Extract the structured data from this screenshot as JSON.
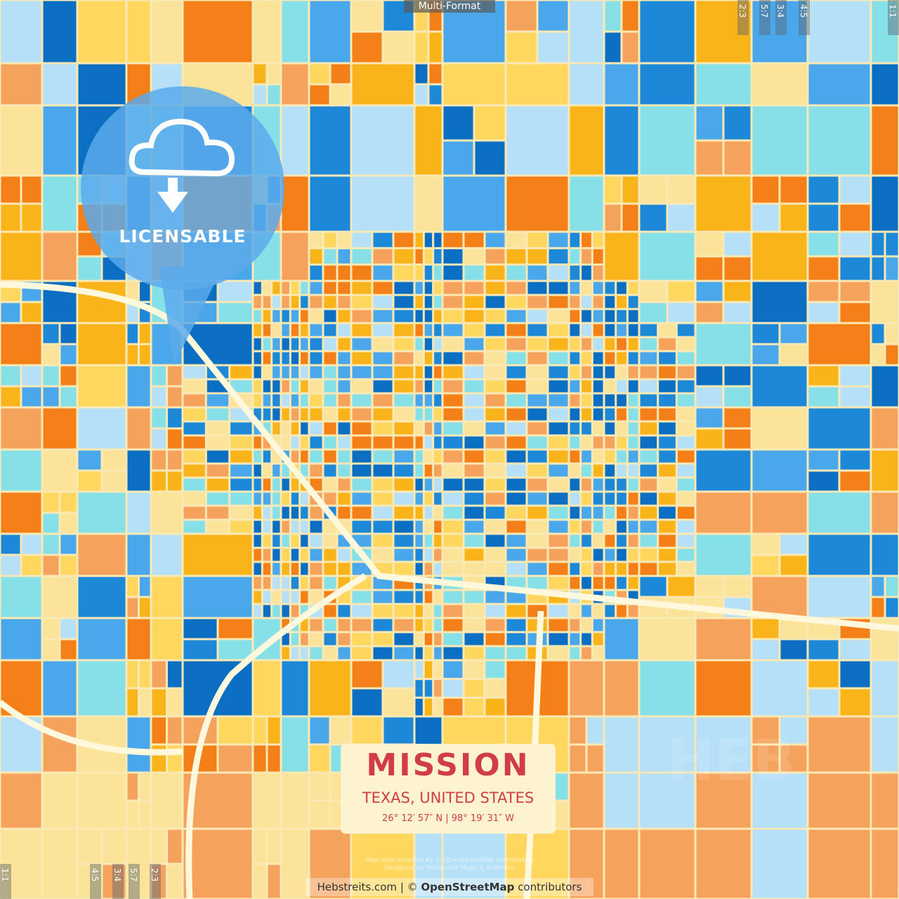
{
  "header": {
    "format_label": "Multi-Format"
  },
  "aspect_ratios_top": [
    "2:3",
    "5:7",
    "3:4",
    "4:5",
    "1:1"
  ],
  "aspect_ratios_bottom": [
    "1:1",
    "4:5",
    "3:4",
    "5:7",
    "2:3"
  ],
  "badge": {
    "label": "LICENSABLE",
    "icon": "cloud-download-icon"
  },
  "title": {
    "city": "MISSION",
    "region": "TEXAS, UNITED STATES",
    "coordinates": "26°  12′  57″ N  |  98°  19′  31″ W"
  },
  "credit": {
    "line1": "Map data supplied by © OpenStreetMap contributors",
    "line2": "Designed by Hebstreits Maps & Sketches"
  },
  "attribution": {
    "site": "Hebstreits.com",
    "separator": " | © ",
    "osm": "OpenStreetMap",
    "suffix": " contributors"
  },
  "watermark": "HEB",
  "palette": [
    "#0a6fc2",
    "#1e88d8",
    "#4aa8ea",
    "#b5e0f7",
    "#86e0e8",
    "#ffd75e",
    "#fbe39a",
    "#f9b41a",
    "#f57f17",
    "#f5a25d"
  ],
  "road_color": "#fff8dc",
  "title_color": "#d23c46"
}
